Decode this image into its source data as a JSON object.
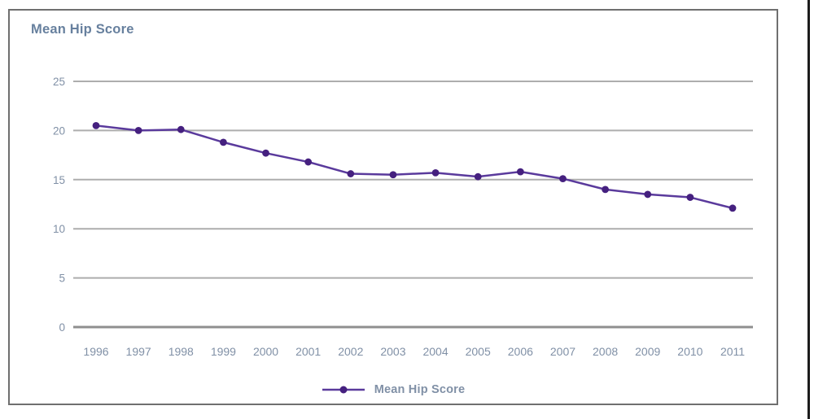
{
  "chart_data": {
    "type": "line",
    "title": "Mean Hip Score",
    "categories": [
      "1996",
      "1997",
      "1998",
      "1999",
      "2000",
      "2001",
      "2002",
      "2003",
      "2004",
      "2005",
      "2006",
      "2007",
      "2008",
      "2009",
      "2010",
      "2011"
    ],
    "series": [
      {
        "name": "Mean Hip Score",
        "values": [
          20.5,
          20.0,
          20.1,
          18.8,
          17.7,
          16.8,
          15.6,
          15.5,
          15.7,
          15.3,
          15.8,
          15.1,
          14.0,
          13.5,
          13.2,
          12.1
        ]
      }
    ],
    "xlabel": "",
    "ylabel": "",
    "ylim": [
      0,
      25
    ],
    "yticks": [
      0,
      5,
      10,
      15,
      20,
      25
    ],
    "grid": "horizontal",
    "legend_position": "bottom",
    "legend_label": "Mean Hip Score",
    "colors": {
      "line": "#5a3a9c",
      "marker": "#45207f",
      "grid": "#adadad",
      "axis": "#8f8f8f",
      "tick_text": "#8090a6",
      "title_text": "#67809e",
      "frame_border": "#6f6f6f",
      "page_edge": "#1c1c1c"
    }
  }
}
